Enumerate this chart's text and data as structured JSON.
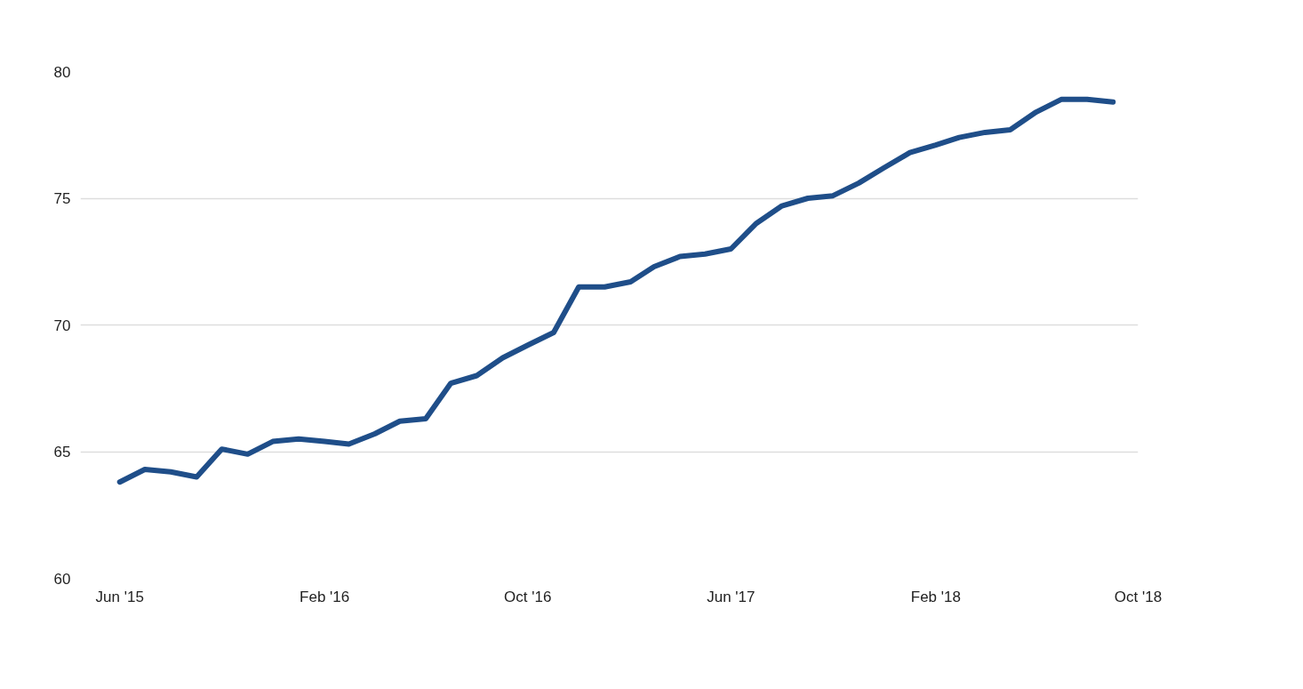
{
  "chart_data": {
    "type": "line",
    "x": [
      "2015-06",
      "2015-07",
      "2015-08",
      "2015-09",
      "2015-10",
      "2015-11",
      "2015-12",
      "2016-01",
      "2016-02",
      "2016-03",
      "2016-04",
      "2016-05",
      "2016-06",
      "2016-07",
      "2016-08",
      "2016-09",
      "2016-10",
      "2016-11",
      "2016-12",
      "2017-01",
      "2017-02",
      "2017-03",
      "2017-04",
      "2017-05",
      "2017-06",
      "2017-07",
      "2017-08",
      "2017-09",
      "2017-10",
      "2017-11",
      "2017-12",
      "2018-01",
      "2018-02",
      "2018-03",
      "2018-04",
      "2018-05",
      "2018-06",
      "2018-07",
      "2018-08",
      "2018-09"
    ],
    "series": [
      {
        "color": "#1f4e89",
        "values": [
          63.8,
          64.3,
          64.2,
          64.0,
          65.1,
          64.9,
          65.4,
          65.5,
          65.4,
          65.3,
          65.7,
          66.2,
          66.3,
          67.7,
          68.0,
          68.7,
          69.2,
          69.7,
          71.5,
          71.5,
          71.7,
          72.3,
          72.7,
          72.8,
          73.0,
          74.0,
          74.7,
          75.0,
          75.1,
          75.6,
          76.2,
          76.8,
          77.1,
          77.4,
          77.6,
          77.7,
          78.4,
          78.9,
          78.9,
          78.8
        ]
      }
    ],
    "xlim": [
      "2015-04-15",
      "2018-10"
    ],
    "xticks": [
      {
        "value": "2015-06",
        "label": "Jun '15"
      },
      {
        "value": "2016-02",
        "label": "Feb '16"
      },
      {
        "value": "2016-10",
        "label": "Oct '16"
      },
      {
        "value": "2017-06",
        "label": "Jun '17"
      },
      {
        "value": "2018-02",
        "label": "Feb '18"
      },
      {
        "value": "2018-10",
        "label": "Oct '18"
      }
    ],
    "ylim": [
      60,
      80
    ],
    "yticks": [
      60,
      65,
      70,
      75,
      80
    ],
    "grid": "y",
    "line_style": "solid",
    "marker": "none"
  }
}
